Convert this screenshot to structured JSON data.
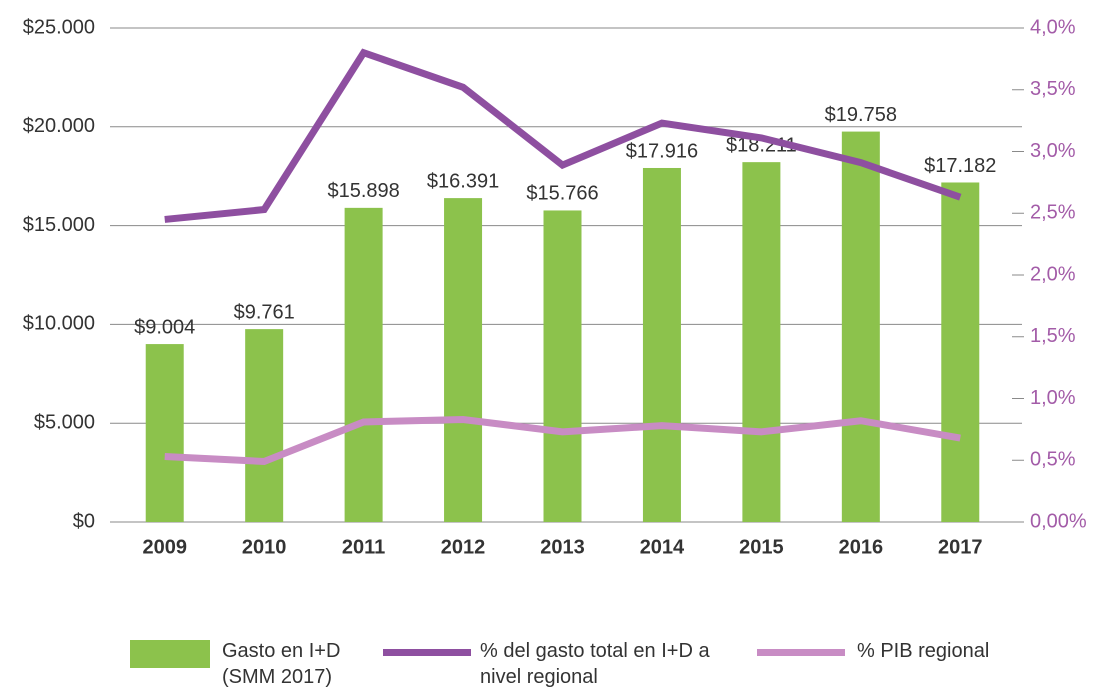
{
  "chart_data": {
    "type": "bar_line",
    "categories": [
      "2009",
      "2010",
      "2011",
      "2012",
      "2013",
      "2014",
      "2015",
      "2016",
      "2017"
    ],
    "series": [
      {
        "name": "Gasto en I+D (SMM 2017)",
        "color": "#8cc24c",
        "type": "bar",
        "values": [
          9004,
          9761,
          15898,
          16391,
          15766,
          17916,
          18211,
          19758,
          17182
        ],
        "value_labels": [
          "$9.004",
          "$9.761",
          "$15.898",
          "$16.391",
          "$15.766",
          "$17.916",
          "$18.211",
          "$19.758",
          "$17.182"
        ]
      },
      {
        "name": "% del gasto total en I+D a nivel regional",
        "color": "#8e4fa0",
        "type": "line",
        "axis": "y2",
        "values": [
          2.45,
          2.53,
          3.8,
          3.52,
          2.89,
          3.23,
          3.11,
          2.91,
          2.63
        ]
      },
      {
        "name": "% PIB regional",
        "color": "#c88cc4",
        "type": "line",
        "axis": "y2",
        "values": [
          0.53,
          0.49,
          0.81,
          0.83,
          0.73,
          0.78,
          0.73,
          0.82,
          0.68
        ]
      }
    ],
    "ylim": [
      0,
      25000
    ],
    "yticks": [
      {
        "value": 0,
        "label": "$0"
      },
      {
        "value": 5000,
        "label": "$5.000"
      },
      {
        "value": 10000,
        "label": "$10.000"
      },
      {
        "value": 15000,
        "label": "$15.000"
      },
      {
        "value": 20000,
        "label": "$20.000"
      },
      {
        "value": 25000,
        "label": "$25.000"
      }
    ],
    "y2lim": [
      0,
      4
    ],
    "y2ticks": [
      {
        "value": 0,
        "label": "0,00%"
      },
      {
        "value": 0.5,
        "label": "0,5%"
      },
      {
        "value": 1,
        "label": "1,0%"
      },
      {
        "value": 1.5,
        "label": "1,5%"
      },
      {
        "value": 2,
        "label": "2,0%"
      },
      {
        "value": 2.5,
        "label": "2,5%"
      },
      {
        "value": 3,
        "label": "3,0%"
      },
      {
        "value": 3.5,
        "label": "3,5%"
      },
      {
        "value": 4,
        "label": "4,0%"
      }
    ],
    "grid": true,
    "legend": "bottom"
  }
}
